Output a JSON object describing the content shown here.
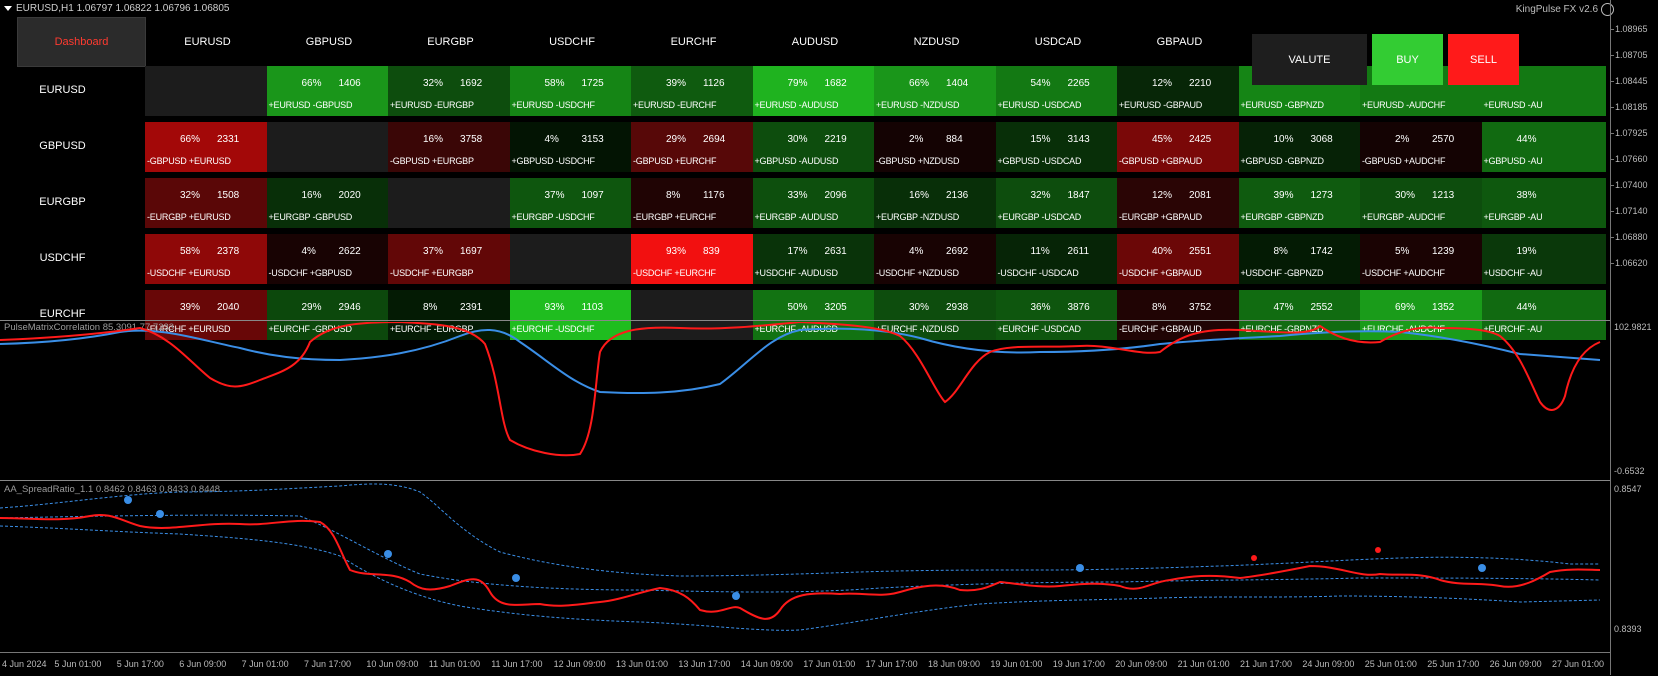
{
  "header": {
    "symbol_info": "EURUSD,H1  1.06797 1.06822 1.06796 1.06805",
    "brand": "KingPulse FX v2.6"
  },
  "dashboard": {
    "button_label": "Dashboard",
    "columns": [
      "EURUSD",
      "GBPUSD",
      "EURGBP",
      "USDCHF",
      "EURCHF",
      "AUDUSD",
      "NZDUSD",
      "USDCAD",
      "GBPAUD"
    ],
    "rows": [
      {
        "name": "EURUSD",
        "cells": [
          {
            "empty": true
          },
          {
            "pct": "66%",
            "num": "1406",
            "pair": "+EURUSD -GBPUSD",
            "color": "#1a961a"
          },
          {
            "pct": "32%",
            "num": "1692",
            "pair": "+EURUSD -EURGBP",
            "color": "#0d4d0d"
          },
          {
            "pct": "58%",
            "num": "1725",
            "pair": "+EURUSD -USDCHF",
            "color": "#158515"
          },
          {
            "pct": "39%",
            "num": "1126",
            "pair": "+EURUSD -EURCHF",
            "color": "#0f5b0f"
          },
          {
            "pct": "79%",
            "num": "1682",
            "pair": "+EURUSD -AUDUSD",
            "color": "#1fb31f"
          },
          {
            "pct": "66%",
            "num": "1404",
            "pair": "+EURUSD -NZDUSD",
            "color": "#1a961a"
          },
          {
            "pct": "54%",
            "num": "2265",
            "pair": "+EURUSD -USDCAD",
            "color": "#137913"
          },
          {
            "pct": "12%",
            "num": "2210",
            "pair": "+EURUSD -GBPAUD",
            "color": "#072607"
          },
          {
            "pct": "",
            "num": "",
            "pair": "+EURUSD -GBPNZD",
            "color": "#158515"
          },
          {
            "pct": "",
            "num": "",
            "pair": "+EURUSD -AUDCHF",
            "color": "#137913"
          },
          {
            "pct": "",
            "num": "",
            "pair": "+EURUSD -AU",
            "color": "#137913"
          }
        ]
      },
      {
        "name": "GBPUSD",
        "cells": [
          {
            "pct": "66%",
            "num": "2331",
            "pair": "-GBPUSD +EURUSD",
            "color": "#a30808"
          },
          {
            "empty": true
          },
          {
            "pct": "16%",
            "num": "3758",
            "pair": "-GBPUSD +EURGBP",
            "color": "#3a0606"
          },
          {
            "pct": "4%",
            "num": "3153",
            "pair": "+GBPUSD -USDCHF",
            "color": "#031403"
          },
          {
            "pct": "29%",
            "num": "2694",
            "pair": "-GBPUSD +EURCHF",
            "color": "#570808"
          },
          {
            "pct": "30%",
            "num": "2219",
            "pair": "+GBPUSD -AUDUSD",
            "color": "#0d4d0d"
          },
          {
            "pct": "2%",
            "num": "884",
            "pair": "-GBPUSD +NZDUSD",
            "color": "#140303"
          },
          {
            "pct": "15%",
            "num": "3143",
            "pair": "+GBPUSD -USDCAD",
            "color": "#082f08"
          },
          {
            "pct": "45%",
            "num": "2425",
            "pair": "-GBPUSD +GBPAUD",
            "color": "#7a0808"
          },
          {
            "pct": "10%",
            "num": "3068",
            "pair": "+GBPUSD -GBPNZD",
            "color": "#062206"
          },
          {
            "pct": "2%",
            "num": "2570",
            "pair": "-GBPUSD +AUDCHF",
            "color": "#140303"
          },
          {
            "pct": "44%",
            "num": "",
            "pair": "+GBPUSD -AU",
            "color": "#116a11"
          }
        ]
      },
      {
        "name": "EURGBP",
        "cells": [
          {
            "pct": "32%",
            "num": "1508",
            "pair": "-EURGBP +EURUSD",
            "color": "#5a0707"
          },
          {
            "pct": "16%",
            "num": "2020",
            "pair": "+EURGBP -GBPUSD",
            "color": "#082f08"
          },
          {
            "empty": true
          },
          {
            "pct": "37%",
            "num": "1097",
            "pair": "+EURGBP -USDCHF",
            "color": "#0e560e"
          },
          {
            "pct": "8%",
            "num": "1176",
            "pair": "-EURGBP +EURCHF",
            "color": "#200404"
          },
          {
            "pct": "33%",
            "num": "2096",
            "pair": "+EURGBP -AUDUSD",
            "color": "#0d4f0d"
          },
          {
            "pct": "16%",
            "num": "2136",
            "pair": "+EURGBP -NZDUSD",
            "color": "#082f08"
          },
          {
            "pct": "32%",
            "num": "1847",
            "pair": "+EURGBP -USDCAD",
            "color": "#0d4d0d"
          },
          {
            "pct": "12%",
            "num": "2081",
            "pair": "-EURGBP +GBPAUD",
            "color": "#2a0505"
          },
          {
            "pct": "39%",
            "num": "1273",
            "pair": "+EURGBP -GBPNZD",
            "color": "#0f5b0f"
          },
          {
            "pct": "30%",
            "num": "1213",
            "pair": "+EURGBP -AUDCHF",
            "color": "#0d4d0d"
          },
          {
            "pct": "38%",
            "num": "",
            "pair": "+EURGBP -AU",
            "color": "#0e580e"
          }
        ]
      },
      {
        "name": "USDCHF",
        "cells": [
          {
            "pct": "58%",
            "num": "2378",
            "pair": "-USDCHF +EURUSD",
            "color": "#8f0808"
          },
          {
            "pct": "4%",
            "num": "2622",
            "pair": "-USDCHF +GBPUSD",
            "color": "#180303"
          },
          {
            "pct": "37%",
            "num": "1697",
            "pair": "-USDCHF +EURGBP",
            "color": "#620707"
          },
          {
            "empty": true
          },
          {
            "pct": "93%",
            "num": "839",
            "pair": "-USDCHF +EURCHF",
            "color": "#f21010"
          },
          {
            "pct": "17%",
            "num": "2631",
            "pair": "+USDCHF -AUDUSD",
            "color": "#093309"
          },
          {
            "pct": "4%",
            "num": "2692",
            "pair": "-USDCHF +NZDUSD",
            "color": "#180303"
          },
          {
            "pct": "11%",
            "num": "2611",
            "pair": "-USDCHF -USDCAD",
            "color": "#062406"
          },
          {
            "pct": "40%",
            "num": "2551",
            "pair": "-USDCHF +GBPAUD",
            "color": "#6b0707"
          },
          {
            "pct": "8%",
            "num": "1742",
            "pair": "+USDCHF -GBPNZD",
            "color": "#041b04"
          },
          {
            "pct": "5%",
            "num": "1239",
            "pair": "-USDCHF +AUDCHF",
            "color": "#1a0303"
          },
          {
            "pct": "19%",
            "num": "",
            "pair": "+USDCHF -AU",
            "color": "#0a380a"
          }
        ]
      },
      {
        "name": "EURCHF",
        "cells": [
          {
            "pct": "39%",
            "num": "2040",
            "pair": "-EURCHF +EURUSD",
            "color": "#680707"
          },
          {
            "pct": "29%",
            "num": "2946",
            "pair": "+EURCHF -GBPUSD",
            "color": "#0c480c"
          },
          {
            "pct": "8%",
            "num": "2391",
            "pair": "+EURCHF -EURGBP",
            "color": "#041b04"
          },
          {
            "pct": "93%",
            "num": "1103",
            "pair": "+EURCHF -USDCHF",
            "color": "#1fbd1f"
          },
          {
            "empty": true
          },
          {
            "pct": "50%",
            "num": "3205",
            "pair": "+EURCHF -AUDUSD",
            "color": "#127312"
          },
          {
            "pct": "30%",
            "num": "2938",
            "pair": "+EURCHF -NZDUSD",
            "color": "#0d4d0d"
          },
          {
            "pct": "36%",
            "num": "3876",
            "pair": "+EURCHF -USDCAD",
            "color": "#0e560e"
          },
          {
            "pct": "8%",
            "num": "3752",
            "pair": "-EURCHF +GBPAUD",
            "color": "#200404"
          },
          {
            "pct": "47%",
            "num": "2552",
            "pair": "+EURCHF -GBPNZD",
            "color": "#116c11"
          },
          {
            "pct": "69%",
            "num": "1352",
            "pair": "+EURCHF -AUDCHF",
            "color": "#1a9c1a"
          },
          {
            "pct": "44%",
            "num": "",
            "pair": "+EURCHF -AU",
            "color": "#116a11"
          }
        ]
      }
    ]
  },
  "trade_buttons": {
    "value": "VALUTE",
    "buy": "BUY",
    "sell": "SELL"
  },
  "price_axis": [
    "1.08965",
    "1.08705",
    "1.08445",
    "1.08185",
    "1.07925",
    "1.07660",
    "1.07400",
    "1.07140",
    "1.06880",
    "1.06620"
  ],
  "correlation_panel": {
    "label": "PulseMatrixCorrelation 85.3091 77.7233",
    "max": "102.9821",
    "min": "-0.6532"
  },
  "spread_panel": {
    "label": "AA_SpreadRatio_1.1 0.8462 0.8463 0.8433 0.8448",
    "max": "0.8547",
    "min": "0.8393"
  },
  "time_axis": [
    "4 Jun 2024",
    "5 Jun 01:00",
    "5 Jun 17:00",
    "6 Jun 09:00",
    "7 Jun 01:00",
    "7 Jun 17:00",
    "10 Jun 09:00",
    "11 Jun 01:00",
    "11 Jun 17:00",
    "12 Jun 09:00",
    "13 Jun 01:00",
    "13 Jun 17:00",
    "14 Jun 09:00",
    "17 Jun 01:00",
    "17 Jun 17:00",
    "18 Jun 09:00",
    "19 Jun 01:00",
    "19 Jun 17:00",
    "20 Jun 09:00",
    "21 Jun 01:00",
    "21 Jun 17:00",
    "24 Jun 09:00",
    "25 Jun 01:00",
    "25 Jun 17:00",
    "26 Jun 09:00",
    "27 Jun 01:00"
  ],
  "colors": {
    "red_line": "#ff1a1a",
    "blue_line": "#3a8ee6",
    "buy": "#33cc33",
    "sell": "#ff1a1a",
    "value_bg": "#1e1e1e"
  }
}
